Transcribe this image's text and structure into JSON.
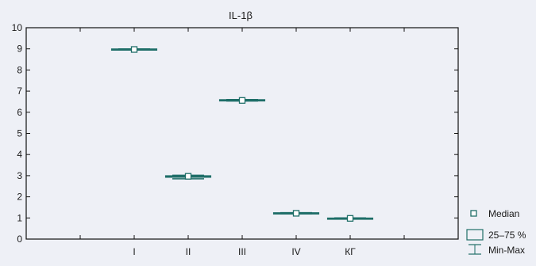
{
  "chart_data": {
    "type": "box",
    "title": "IL-1β",
    "xlabel": "",
    "ylabel": "",
    "categories": [
      "I",
      "II",
      "III",
      "IV",
      "КГ"
    ],
    "ylim": [
      0,
      10
    ],
    "yticks": [
      0,
      1,
      2,
      3,
      4,
      5,
      6,
      7,
      8,
      9,
      10
    ],
    "boxes": [
      {
        "category": "I",
        "min": 8.95,
        "q1": 8.95,
        "median": 8.97,
        "q3": 9.0,
        "max": 9.0
      },
      {
        "category": "II",
        "min": 2.85,
        "q1": 2.92,
        "median": 2.97,
        "q3": 3.0,
        "max": 3.02
      },
      {
        "category": "III",
        "min": 6.53,
        "q1": 6.53,
        "median": 6.56,
        "q3": 6.6,
        "max": 6.6
      },
      {
        "category": "IV",
        "min": 1.2,
        "q1": 1.2,
        "median": 1.22,
        "q3": 1.25,
        "max": 1.25
      },
      {
        "category": "КГ",
        "min": 0.96,
        "q1": 0.96,
        "median": 0.98,
        "q3": 1.0,
        "max": 1.0
      }
    ],
    "legend": {
      "position": "bottom-right",
      "entries": [
        "Median",
        "25–75 %",
        "Min-Max"
      ]
    },
    "grid": false,
    "colors": {
      "box": "#1f6e68",
      "marker_fill": "#ffffff",
      "axis": "#111111",
      "background": "#eef0f6"
    }
  }
}
